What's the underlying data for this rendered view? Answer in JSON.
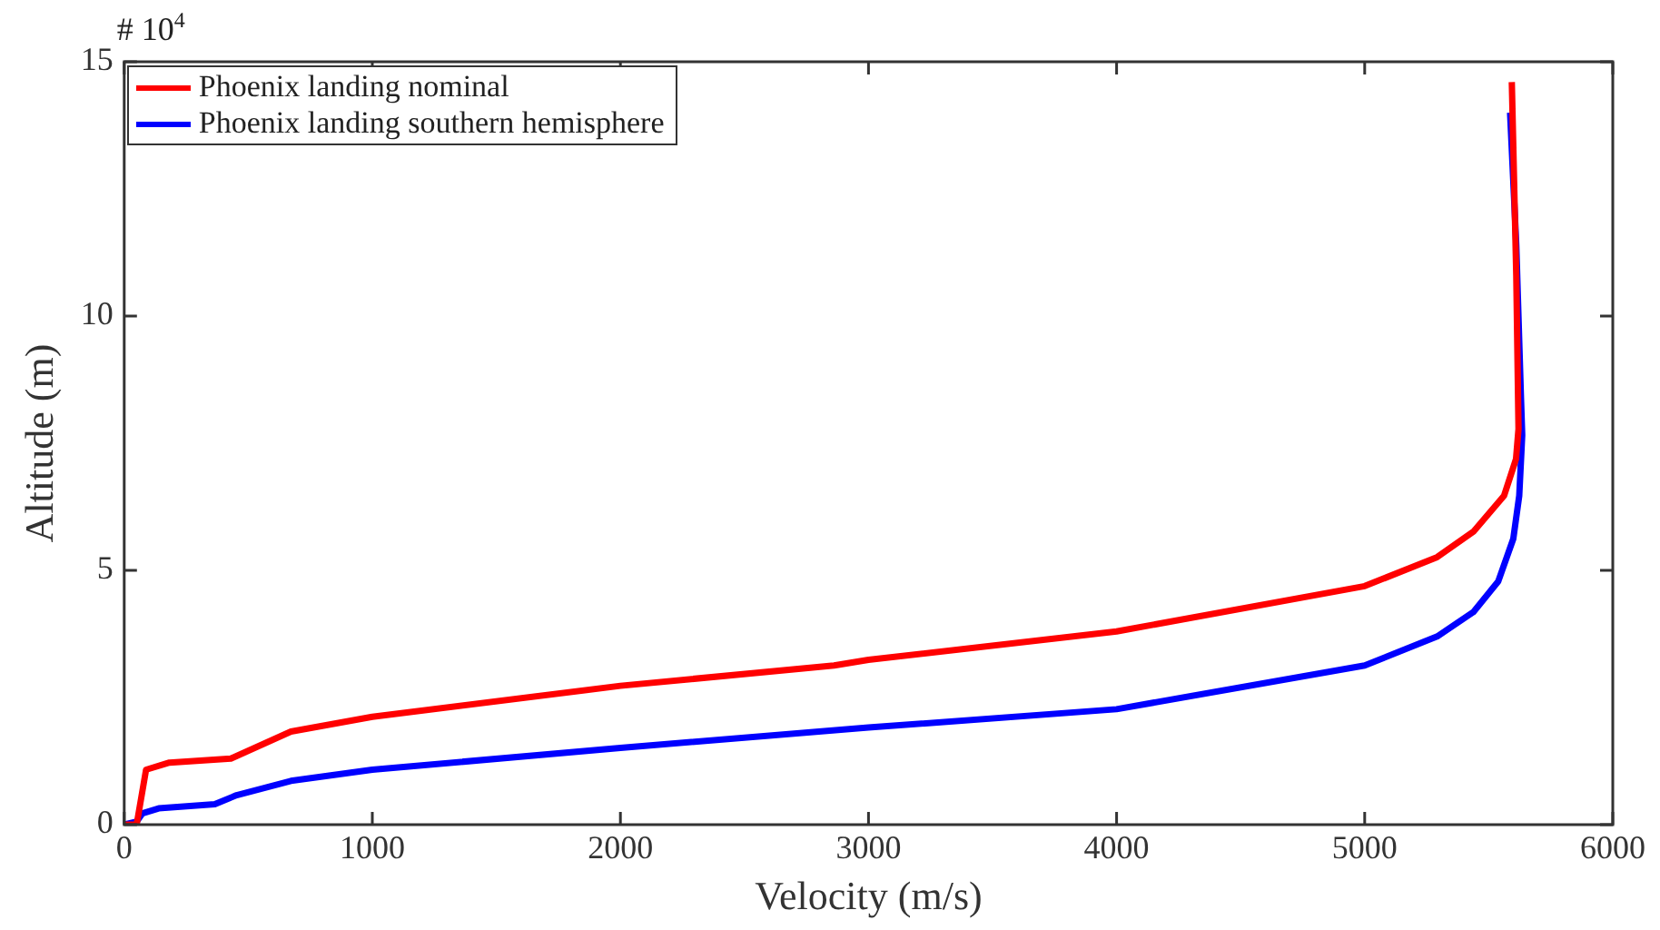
{
  "chart_data": {
    "type": "line",
    "xlabel": "Velocity (m/s)",
    "ylabel": "Altitude (m)",
    "annotations": [
      "# 10$^{4}$"
    ],
    "xlim": [
      0,
      6000
    ],
    "xticks": [
      0,
      1000,
      2000,
      3000,
      4000,
      5000,
      6000
    ],
    "ylim": [
      0,
      15
    ],
    "yticks": [
      0,
      5,
      10,
      15
    ],
    "grid": false,
    "legend": "top left",
    "marker": "none",
    "line_style": "solid",
    "series": [
      {
        "name": "Phoenix landing nominal",
        "color": "#ff0000",
        "x": [
          0,
          50,
          88,
          182,
          430,
          672,
          1000,
          2000,
          2861,
          3000,
          4000,
          5000,
          5292,
          5438,
          5562,
          5610,
          5620,
          5611,
          5593
        ],
        "values": [
          0,
          0,
          1.08,
          1.22,
          1.3,
          1.83,
          2.12,
          2.73,
          3.13,
          3.24,
          3.8,
          4.69,
          5.26,
          5.76,
          6.47,
          7.19,
          7.78,
          10.8,
          14.6
        ]
      },
      {
        "name": "Phoenix landing southern hemisphere",
        "color": "#0000ff",
        "x": [
          0,
          50,
          73,
          139,
          365,
          453,
          672,
          1000,
          2000,
          3000,
          4000,
          5000,
          5292,
          5438,
          5538,
          5599,
          5623,
          5635,
          5630,
          5611,
          5586
        ],
        "values": [
          0,
          0.06,
          0.22,
          0.32,
          0.4,
          0.58,
          0.86,
          1.08,
          1.51,
          1.91,
          2.27,
          3.13,
          3.7,
          4.18,
          4.78,
          5.62,
          6.47,
          7.66,
          8.38,
          11.4,
          14.0
        ]
      }
    ]
  }
}
